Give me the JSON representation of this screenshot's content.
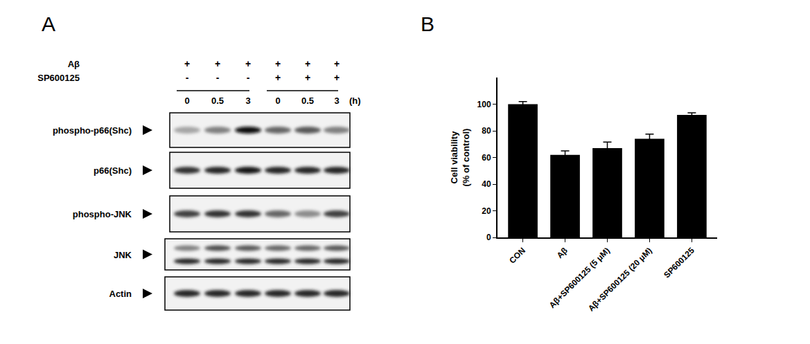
{
  "panel_labels": [
    "A",
    "B"
  ],
  "blot": {
    "conditions": [
      {
        "name": "Aβ",
        "marks": [
          "+",
          "+",
          "+",
          "+",
          "+",
          "+"
        ]
      },
      {
        "name": "SP600125",
        "marks": [
          "-",
          "-",
          "-",
          "+",
          "+",
          "+"
        ]
      }
    ],
    "times": [
      "0",
      "0.5",
      "3",
      "0",
      "0.5",
      "3"
    ],
    "time_unit": "(h)",
    "rows": [
      {
        "label": "phospho-p66(Shc)",
        "bands": [
          [
            0.35,
            0.5,
            0.95,
            0.6,
            0.65,
            0.5
          ]
        ]
      },
      {
        "label": "p66(Shc)",
        "bands": [
          [
            0.8,
            0.85,
            0.9,
            0.85,
            0.85,
            0.85
          ]
        ]
      },
      {
        "label": "phospho-JNK",
        "bands": [
          [
            0.75,
            0.8,
            0.8,
            0.6,
            0.45,
            0.75
          ]
        ]
      },
      {
        "label": "JNK",
        "bands": [
          [
            0.5,
            0.7,
            0.65,
            0.6,
            0.6,
            0.65
          ],
          [
            0.85,
            0.85,
            0.85,
            0.85,
            0.85,
            0.85
          ]
        ]
      },
      {
        "label": "Actin",
        "bands": [
          [
            0.85,
            0.85,
            0.85,
            0.85,
            0.85,
            0.85
          ]
        ]
      }
    ]
  },
  "chart_data": {
    "type": "bar",
    "categories": [
      "CON",
      "Aβ",
      "Aβ+SP600125 (5 μM)",
      "Aβ+SP600125 (20 μM)",
      "SP600125"
    ],
    "values": [
      100,
      62,
      67,
      74,
      92
    ],
    "errors": [
      2,
      3,
      4.5,
      3.5,
      1.5
    ],
    "color": "#000000",
    "y_label": [
      "Cell viability",
      "(% of control)"
    ],
    "ylim": [
      0,
      120
    ],
    "yticks": [
      0,
      20,
      40,
      60,
      80,
      100
    ],
    "grid": false
  }
}
